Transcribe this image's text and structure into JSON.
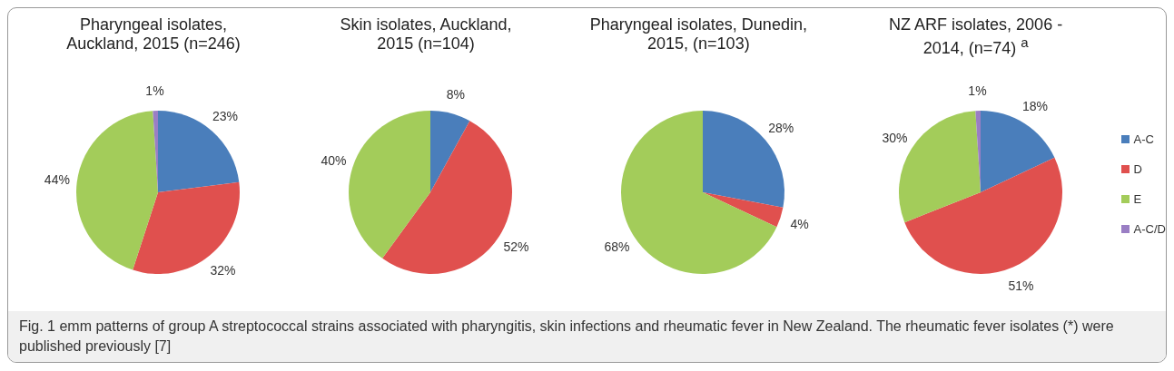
{
  "chart_data": [
    {
      "type": "pie",
      "title": "Pharyngeal isolates, Auckland, 2015 (n=246)",
      "categories": [
        null,
        null,
        null,
        null
      ],
      "values": [
        23,
        32,
        44,
        1
      ],
      "value_labels": [
        "23%",
        "32%",
        "44%",
        "1%"
      ],
      "colors": [
        "#4a7ebb",
        "#e0504e",
        "#a3cc5a",
        "#9a7ec4"
      ],
      "annotations": [
        "Fig. 1 emm patterns of group A streptococcal strains associated with pharyngitis, skin infections and rheumatic fever in New Zealand. The rheumatic fever isolates (*) were published previously [7]"
      ]
    },
    {
      "type": "pie",
      "title": "Skin isolates, Auckland, 2015 (n=104)",
      "categories": [
        null,
        null,
        null
      ],
      "values": [
        8,
        52,
        40
      ],
      "value_labels": [
        "8%",
        "52%",
        "40%"
      ],
      "colors": [
        "#4a7ebb",
        "#e0504e",
        "#a3cc5a"
      ]
    },
    {
      "type": "pie",
      "title": "Pharyngeal isolates, Dunedin, 2015, (n=103)",
      "categories": [
        null,
        null,
        null
      ],
      "values": [
        28,
        4,
        68
      ],
      "value_labels": [
        "28%",
        "4%",
        "68%"
      ],
      "colors": [
        "#4a7ebb",
        "#e0504e",
        "#a3cc5a"
      ]
    },
    {
      "type": "pie",
      "title": "NZ ARF isolates, 2006 - 2014, (n=74) $^{a}$",
      "categories": [
        "A-C",
        "D",
        "E",
        "A-C/D"
      ],
      "values": [
        18,
        51,
        30,
        1
      ],
      "value_labels": [
        "18%",
        "51%",
        "30%",
        "1%"
      ],
      "colors": [
        "#4a7ebb",
        "#e0504e",
        "#a3cc5a",
        "#9a7ec4"
      ],
      "legend": "right"
    }
  ]
}
